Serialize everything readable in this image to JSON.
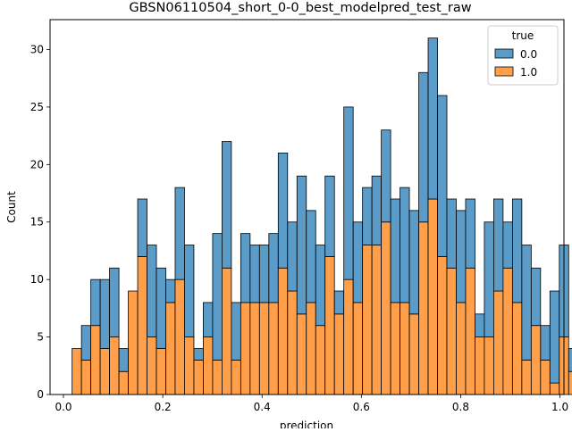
{
  "chart_data": {
    "type": "bar",
    "stacked": true,
    "title": "GBSN06110504_short_0-0_best_modelpred_test_raw",
    "xlabel": "prediction",
    "ylabel": "Count",
    "xlim": [
      -0.027,
      1.008
    ],
    "ylim": [
      0,
      32.6
    ],
    "xticks": [
      0.0,
      0.2,
      0.4,
      0.6,
      0.8,
      1.0
    ],
    "xtick_labels": [
      "0.0",
      "0.2",
      "0.4",
      "0.6",
      "0.8",
      "1.0"
    ],
    "yticks": [
      0,
      5,
      10,
      15,
      20,
      25,
      30
    ],
    "ytick_labels": [
      "0",
      "5",
      "10",
      "15",
      "20",
      "25",
      "30"
    ],
    "bin_start": 0.0174,
    "bin_width": 0.01887,
    "legend": {
      "title": "true",
      "position": "top-right"
    },
    "series": [
      {
        "name": "0.0",
        "color": "#5b9bc8",
        "values": [
          0,
          3,
          4,
          6,
          6,
          2,
          0,
          5,
          8,
          7,
          2,
          8,
          8,
          1,
          3,
          11,
          11,
          5,
          6,
          5,
          5,
          6,
          10,
          6,
          12,
          8,
          7,
          7,
          2,
          15,
          7,
          5,
          6,
          8,
          9,
          10,
          9,
          13,
          14,
          14,
          6,
          8,
          6,
          2,
          10,
          8,
          4,
          9,
          10,
          5,
          3,
          8,
          8,
          2,
          2,
          0
        ]
      },
      {
        "name": "1.0",
        "color": "#ff9f4a",
        "values": [
          4,
          3,
          6,
          4,
          5,
          2,
          9,
          12,
          5,
          4,
          8,
          10,
          5,
          3,
          5,
          3,
          11,
          3,
          8,
          8,
          8,
          8,
          11,
          9,
          7,
          8,
          6,
          12,
          7,
          10,
          8,
          13,
          13,
          15,
          8,
          8,
          7,
          15,
          17,
          12,
          11,
          8,
          11,
          5,
          5,
          9,
          11,
          8,
          3,
          6,
          3,
          1,
          5,
          2,
          4,
          2
        ]
      }
    ]
  }
}
